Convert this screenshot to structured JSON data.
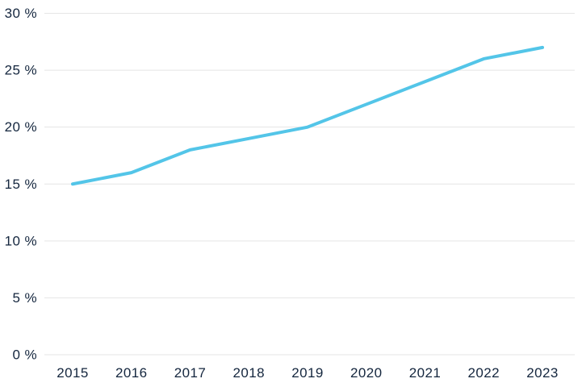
{
  "chart_data": {
    "type": "line",
    "title": "",
    "xlabel": "",
    "ylabel": "",
    "categories": [
      "2015",
      "2016",
      "2017",
      "2018",
      "2019",
      "2020",
      "2021",
      "2022",
      "2023"
    ],
    "values": [
      15,
      16,
      18,
      19,
      20,
      22,
      24,
      26,
      27
    ],
    "unit": "%",
    "ylim": [
      0,
      30
    ],
    "y_tick_step": 5,
    "y_ticks": [
      0,
      5,
      10,
      15,
      20,
      25,
      30
    ],
    "y_tick_labels": [
      "0 %",
      "5 %",
      "10 %",
      "15 %",
      "20 %",
      "25 %",
      "30 %"
    ],
    "grid": "horizontal",
    "legend": "none",
    "colors": {
      "line": "#53C5E8",
      "gridline": "#E5E5E5",
      "label": "#14263E",
      "background": "#FFFFFF"
    }
  }
}
